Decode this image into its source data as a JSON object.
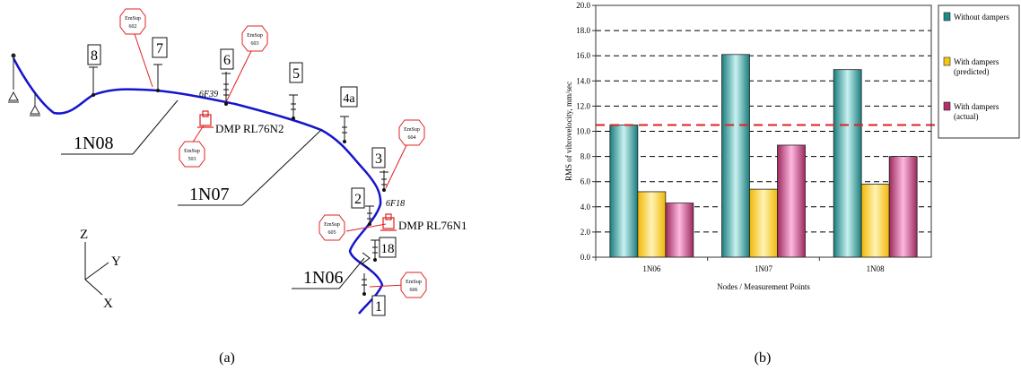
{
  "panel_a": {
    "label": "(a)",
    "node_labels": [
      "8",
      "7",
      "6",
      "5",
      "4a",
      "3",
      "2",
      "18",
      "1"
    ],
    "line_labels": [
      "1N08",
      "1N07",
      "1N06"
    ],
    "dampers": [
      "DMP RL76N2",
      "DMP RL76N1"
    ],
    "point_ids": [
      "6F39",
      "6F18"
    ],
    "support_tags": [
      {
        "l1": "EmSup",
        "l2": "602"
      },
      {
        "l1": "EmSup",
        "l2": "603"
      },
      {
        "l1": "EmSup",
        "l2": "503"
      },
      {
        "l1": "EmSup",
        "l2": "604"
      },
      {
        "l1": "EmSup",
        "l2": "605"
      },
      {
        "l1": "EmSup",
        "l2": "606"
      }
    ],
    "axes": {
      "z": "Z",
      "y": "Y",
      "x": "X"
    }
  },
  "panel_b": {
    "label": "(b)"
  },
  "chart_data": {
    "type": "bar",
    "categories": [
      "1N06",
      "1N07",
      "1N08"
    ],
    "series": [
      {
        "name": "Without dampers",
        "values": [
          10.5,
          16.1,
          14.9
        ],
        "color": "#1f8a8a"
      },
      {
        "name": "With dampers (predicted)",
        "values": [
          5.2,
          5.4,
          5.8
        ],
        "color": "#f5c518"
      },
      {
        "name": "With dampers (actual)",
        "values": [
          4.3,
          8.9,
          8.0
        ],
        "color": "#b0306a"
      }
    ],
    "legend_lines": [
      [
        "Without dampers"
      ],
      [
        "With dampers",
        "(predicted)"
      ],
      [
        "With dampers",
        "(actual)"
      ]
    ],
    "xlabel": "Nodes / Measurement Points",
    "ylabel": "RMS of vibrovelocity, mm/sec",
    "ylim": [
      0,
      20
    ],
    "ytick_step": 2,
    "ytick_labels": [
      "0.0",
      "2.0",
      "4.0",
      "6.0",
      "8.0",
      "10.0",
      "12.0",
      "14.0",
      "16.0",
      "18.0",
      "20.0"
    ],
    "threshold": 10.5,
    "threshold_color": "#e02020",
    "grid": true,
    "legend_position": "right"
  }
}
